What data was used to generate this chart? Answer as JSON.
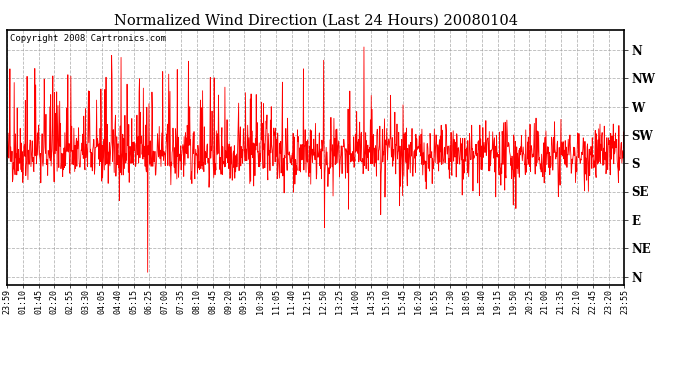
{
  "title": "Normalized Wind Direction (Last 24 Hours) 20080104",
  "copyright_text": "Copyright 2008 Cartronics.com",
  "line_color": "#ff0000",
  "background_color": "#ffffff",
  "grid_color": "#999999",
  "y_tick_labels": [
    "N",
    "NW",
    "W",
    "SW",
    "S",
    "SE",
    "E",
    "NE",
    "N"
  ],
  "y_tick_values": [
    8,
    7,
    6,
    5,
    4,
    3,
    2,
    1,
    0
  ],
  "ylim": [
    -0.3,
    8.7
  ],
  "x_tick_labels": [
    "23:59",
    "01:10",
    "01:45",
    "02:20",
    "02:55",
    "03:30",
    "04:05",
    "04:40",
    "05:15",
    "06:25",
    "07:00",
    "07:35",
    "08:10",
    "08:45",
    "09:20",
    "09:55",
    "10:30",
    "11:05",
    "11:40",
    "12:15",
    "12:50",
    "13:25",
    "14:00",
    "14:35",
    "15:10",
    "15:45",
    "16:20",
    "16:55",
    "17:30",
    "18:05",
    "18:40",
    "19:15",
    "19:50",
    "20:25",
    "21:00",
    "21:35",
    "22:10",
    "22:45",
    "23:20",
    "23:55"
  ],
  "seed": 42,
  "n_points": 1440,
  "figsize": [
    6.9,
    3.75
  ],
  "dpi": 100
}
